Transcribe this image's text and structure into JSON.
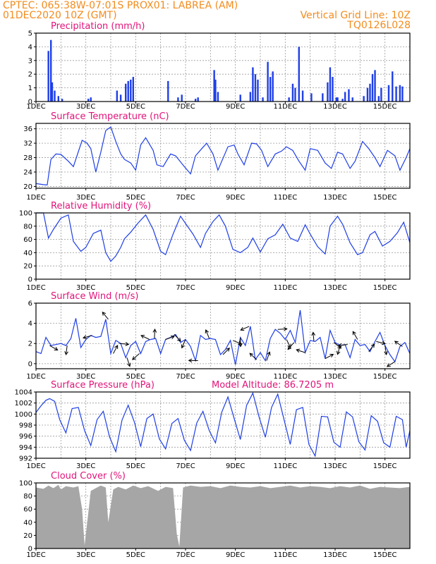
{
  "header": {
    "line1_left": "CPTEC:   065:38W-07:01S   PROX01: LABREA (AM)",
    "line2_left": "01DEC2020 10Z (GMT)",
    "line2_right": "Vertical Grid Line: 10Z",
    "line3_right": "TQ0126L028"
  },
  "colors": {
    "header": "#f28c1e",
    "title": "#e0147a",
    "series": "#1f3fe6",
    "cloud": "#a6a6a6",
    "bars": "#1f3fe6"
  },
  "x_axis": {
    "tick_labels": [
      "1DEC",
      "3DEC",
      "5DEC",
      "7DEC",
      "9DEC",
      "11DEC",
      "13DEC",
      "15DEC"
    ],
    "range_days": [
      1,
      16
    ]
  },
  "chart_data": [
    {
      "type": "bar",
      "title": "Precipitation (mm/h)",
      "ylim": [
        0,
        5
      ],
      "yticks": [
        0,
        1,
        2,
        3,
        4,
        5
      ],
      "x": [
        1.5,
        1.6,
        1.65,
        1.75,
        1.9,
        2.05,
        3.1,
        3.2,
        4.25,
        4.4,
        4.6,
        4.7,
        4.8,
        4.9,
        6.3,
        6.7,
        6.85,
        7.4,
        7.5,
        8.15,
        8.2,
        8.3,
        9.2,
        9.6,
        9.7,
        9.8,
        9.9,
        10.1,
        10.3,
        10.4,
        10.5,
        11.15,
        11.3,
        11.4,
        11.55,
        11.7,
        12.05,
        12.5,
        12.7,
        12.8,
        12.9,
        13.05,
        13.1,
        13.3,
        13.4,
        13.55,
        13.7,
        14.15,
        14.3,
        14.4,
        14.5,
        14.6,
        14.75,
        14.85,
        15.15,
        15.3,
        15.45,
        15.6,
        15.7
      ],
      "values": [
        3.7,
        4.5,
        1.4,
        0.8,
        0.4,
        0.2,
        0.2,
        0.3,
        0.8,
        0.5,
        1.3,
        1.5,
        1.6,
        1.8,
        1.5,
        0.3,
        0.5,
        0.2,
        0.3,
        2.3,
        1.6,
        0.7,
        0.5,
        0.7,
        2.5,
        2.0,
        1.6,
        0.3,
        2.9,
        1.8,
        2.2,
        0.3,
        1.3,
        1.0,
        4.0,
        0.8,
        0.6,
        0.6,
        1.4,
        2.5,
        1.8,
        0.3,
        0.3,
        0.2,
        0.7,
        0.9,
        0.3,
        0.4,
        1.0,
        1.3,
        2.0,
        2.3,
        0.4,
        1.0,
        1.2,
        2.2,
        1.1,
        1.2,
        1.1
      ]
    },
    {
      "type": "line",
      "title": "Surface Temperature (nC)",
      "ylim": [
        19.5,
        37.5
      ],
      "yticks": [
        20,
        24,
        28,
        32,
        36
      ],
      "ytick_labels": [
        "20",
        "24",
        "28",
        "32",
        "36"
      ],
      "x": [
        1.0,
        1.3,
        1.45,
        1.6,
        1.8,
        2.0,
        2.3,
        2.5,
        2.85,
        3.05,
        3.2,
        3.4,
        3.6,
        3.8,
        4.0,
        4.2,
        4.4,
        4.55,
        4.8,
        5.0,
        5.2,
        5.4,
        5.7,
        5.85,
        6.1,
        6.4,
        6.6,
        6.95,
        7.2,
        7.4,
        7.65,
        7.85,
        8.1,
        8.3,
        8.7,
        8.95,
        9.1,
        9.35,
        9.65,
        9.85,
        10.05,
        10.3,
        10.6,
        10.85,
        11.05,
        11.3,
        11.55,
        11.8,
        12.0,
        12.3,
        12.6,
        12.85,
        13.1,
        13.3,
        13.6,
        13.8,
        14.1,
        14.35,
        14.6,
        14.8,
        15.1,
        15.4,
        15.6,
        15.85,
        16.0
      ],
      "values": [
        20.8,
        20.5,
        20.4,
        27.5,
        29.0,
        28.9,
        27.0,
        25.5,
        32.8,
        32.0,
        30.5,
        24.0,
        29.5,
        35.5,
        36.5,
        32.5,
        29.0,
        27.5,
        26.5,
        24.5,
        31.5,
        33.5,
        30.0,
        26.0,
        25.5,
        29.0,
        28.5,
        25.5,
        23.5,
        28.5,
        30.5,
        32.0,
        29.0,
        24.5,
        31.0,
        31.5,
        29.0,
        26.0,
        32.0,
        31.8,
        30.0,
        25.5,
        29.0,
        29.8,
        31.0,
        30.0,
        27.0,
        24.5,
        30.5,
        30.0,
        26.5,
        25.0,
        29.5,
        29.0,
        25.0,
        27.0,
        32.5,
        30.5,
        28.0,
        25.5,
        30.0,
        28.5,
        24.5,
        28.0,
        30.5
      ]
    },
    {
      "type": "line",
      "title": "Relative Humidity (%)",
      "ylim": [
        0,
        100
      ],
      "yticks": [
        0,
        20,
        40,
        60,
        80,
        100
      ],
      "x": [
        1.0,
        1.3,
        1.5,
        1.7,
        2.0,
        2.3,
        2.5,
        2.8,
        3.0,
        3.3,
        3.6,
        3.8,
        4.0,
        4.2,
        4.4,
        4.55,
        4.8,
        5.1,
        5.4,
        5.7,
        6.0,
        6.2,
        6.5,
        6.8,
        7.0,
        7.3,
        7.6,
        7.8,
        8.1,
        8.35,
        8.6,
        8.9,
        9.2,
        9.5,
        9.7,
        10.0,
        10.3,
        10.6,
        10.9,
        11.2,
        11.5,
        11.8,
        12.0,
        12.3,
        12.6,
        12.8,
        13.1,
        13.3,
        13.6,
        13.9,
        14.1,
        14.4,
        14.6,
        14.9,
        15.2,
        15.5,
        15.75,
        16.0
      ],
      "values": [
        100,
        100,
        62,
        75,
        92,
        97,
        57,
        42,
        48,
        69,
        74,
        40,
        27,
        35,
        48,
        61,
        71,
        85,
        97,
        75,
        42,
        37,
        68,
        95,
        84,
        68,
        48,
        69,
        87,
        97,
        80,
        45,
        40,
        48,
        62,
        41,
        61,
        67,
        83,
        62,
        57,
        82,
        68,
        49,
        38,
        80,
        95,
        83,
        55,
        37,
        40,
        67,
        72,
        50,
        57,
        70,
        86,
        55
      ]
    },
    {
      "type": "line",
      "title": "Surface Wind (m/s)",
      "ylim": [
        -0.5,
        6
      ],
      "yticks": [
        0,
        2,
        4,
        6
      ],
      "x": [
        1.0,
        1.2,
        1.4,
        1.6,
        1.8,
        2.0,
        2.2,
        2.4,
        2.6,
        2.8,
        3.0,
        3.2,
        3.4,
        3.6,
        3.8,
        4.0,
        4.2,
        4.4,
        4.6,
        4.8,
        5.0,
        5.2,
        5.4,
        5.6,
        5.8,
        6.0,
        6.2,
        6.4,
        6.6,
        6.8,
        7.0,
        7.2,
        7.4,
        7.6,
        7.8,
        8.0,
        8.2,
        8.4,
        8.6,
        8.8,
        9.0,
        9.2,
        9.4,
        9.6,
        9.8,
        10.0,
        10.2,
        10.4,
        10.6,
        10.8,
        11.0,
        11.2,
        11.4,
        11.6,
        11.8,
        12.0,
        12.2,
        12.4,
        12.6,
        12.8,
        13.0,
        13.2,
        13.4,
        13.6,
        13.8,
        14.0,
        14.2,
        14.4,
        14.6,
        14.8,
        15.0,
        15.2,
        15.4,
        15.6,
        15.8,
        16.0
      ],
      "values": [
        1.2,
        1.0,
        2.6,
        1.8,
        1.9,
        2.0,
        1.8,
        2.5,
        4.5,
        1.6,
        2.4,
        2.8,
        2.6,
        2.7,
        4.4,
        1.0,
        2.3,
        2.0,
        0.6,
        1.8,
        2.2,
        1.0,
        2.2,
        2.4,
        2.5,
        1.0,
        2.4,
        2.6,
        2.9,
        2.1,
        2.4,
        1.7,
        0.3,
        2.8,
        2.4,
        2.5,
        2.4,
        0.9,
        1.4,
        2.3,
        -0.1,
        2.6,
        1.8,
        3.7,
        0.4,
        1.1,
        0.3,
        2.5,
        3.4,
        3.0,
        2.4,
        3.3,
        2.1,
        5.3,
        1.1,
        2.3,
        2.2,
        2.6,
        0.5,
        3.3,
        2.1,
        1.8,
        1.9,
        0.6,
        2.4,
        1.8,
        1.9,
        1.2,
        2.2,
        3.1,
        1.8,
        0.9,
        0.2,
        1.7,
        2.1,
        1.0
      ],
      "arrows_x": [
        1.55,
        2.25,
        3.25,
        3.9,
        4.1,
        4.35,
        4.65,
        5.15,
        5.55,
        5.75,
        6.2,
        6.55,
        7.0,
        7.5,
        7.95,
        8.5,
        8.9,
        9.2,
        9.55,
        9.85,
        10.25,
        10.7,
        11.05,
        11.35,
        11.8,
        12.15,
        12.6,
        12.95,
        13.2,
        13.5,
        13.9,
        14.35,
        14.65,
        15.0,
        15.4,
        15.7
      ]
    },
    {
      "type": "line",
      "title": "Surface Pressure (hPa)",
      "annotation": "Model Altitude: 86.7205 m",
      "ylim": [
        992,
        1004
      ],
      "yticks": [
        992,
        994,
        996,
        998,
        1000,
        1002,
        1004
      ],
      "x": [
        1.0,
        1.2,
        1.4,
        1.55,
        1.75,
        1.95,
        2.2,
        2.45,
        2.7,
        2.95,
        3.2,
        3.45,
        3.7,
        3.95,
        4.2,
        4.45,
        4.7,
        4.95,
        5.2,
        5.45,
        5.7,
        5.95,
        6.2,
        6.45,
        6.7,
        6.95,
        7.2,
        7.45,
        7.7,
        7.95,
        8.2,
        8.45,
        8.7,
        8.95,
        9.2,
        9.45,
        9.7,
        9.95,
        10.2,
        10.45,
        10.7,
        10.95,
        11.2,
        11.45,
        11.7,
        11.95,
        12.2,
        12.45,
        12.7,
        12.95,
        13.2,
        13.45,
        13.7,
        13.95,
        14.2,
        14.45,
        14.7,
        14.95,
        15.2,
        15.45,
        15.7,
        15.85,
        16.0
      ],
      "values": [
        1000.3,
        1001.5,
        1002.5,
        1002.8,
        1002.3,
        999.0,
        996.6,
        1001.0,
        1001.2,
        997.0,
        994.3,
        999.0,
        1000.5,
        995.9,
        993.2,
        998.9,
        1001.6,
        998.5,
        994.1,
        999.2,
        1000.0,
        995.5,
        993.7,
        998.3,
        999.2,
        995.3,
        993.4,
        998.4,
        1000.5,
        997.0,
        994.8,
        1000.3,
        1003.1,
        999.2,
        995.4,
        1001.6,
        1003.8,
        999.5,
        995.8,
        1001.2,
        1003.6,
        999.0,
        994.5,
        1000.8,
        1001.2,
        994.5,
        992.4,
        999.6,
        999.5,
        994.9,
        994.0,
        1000.4,
        999.5,
        995.0,
        993.5,
        999.7,
        998.7,
        994.8,
        994.0,
        999.6,
        999.0,
        994.0,
        997.0
      ]
    },
    {
      "type": "area",
      "title": "Cloud Cover (%)",
      "ylim": [
        0,
        100
      ],
      "yticks": [
        0,
        20,
        40,
        60,
        80,
        100
      ],
      "x": [
        1.0,
        1.3,
        1.5,
        1.7,
        1.9,
        2.0,
        2.2,
        2.5,
        2.7,
        2.85,
        2.95,
        3.2,
        3.4,
        3.6,
        3.8,
        3.9,
        4.1,
        4.3,
        4.6,
        4.9,
        5.2,
        5.5,
        5.9,
        6.2,
        6.5,
        6.65,
        6.75,
        6.9,
        7.2,
        7.6,
        8.0,
        8.4,
        8.8,
        9.2,
        9.6,
        10.0,
        10.4,
        10.8,
        11.2,
        11.6,
        12.0,
        12.4,
        12.8,
        13.2,
        13.6,
        14.0,
        14.4,
        14.8,
        15.2,
        15.6,
        16.0
      ],
      "values": [
        93,
        91,
        96,
        92,
        97,
        90,
        95,
        93,
        95,
        60,
        5,
        88,
        92,
        96,
        93,
        40,
        90,
        94,
        90,
        96,
        92,
        95,
        88,
        94,
        92,
        22,
        3,
        93,
        96,
        94,
        95,
        92,
        96,
        94,
        93,
        95,
        92,
        94,
        96,
        93,
        95,
        94,
        92,
        95,
        93,
        96,
        91,
        94,
        93,
        92,
        94
      ]
    }
  ]
}
